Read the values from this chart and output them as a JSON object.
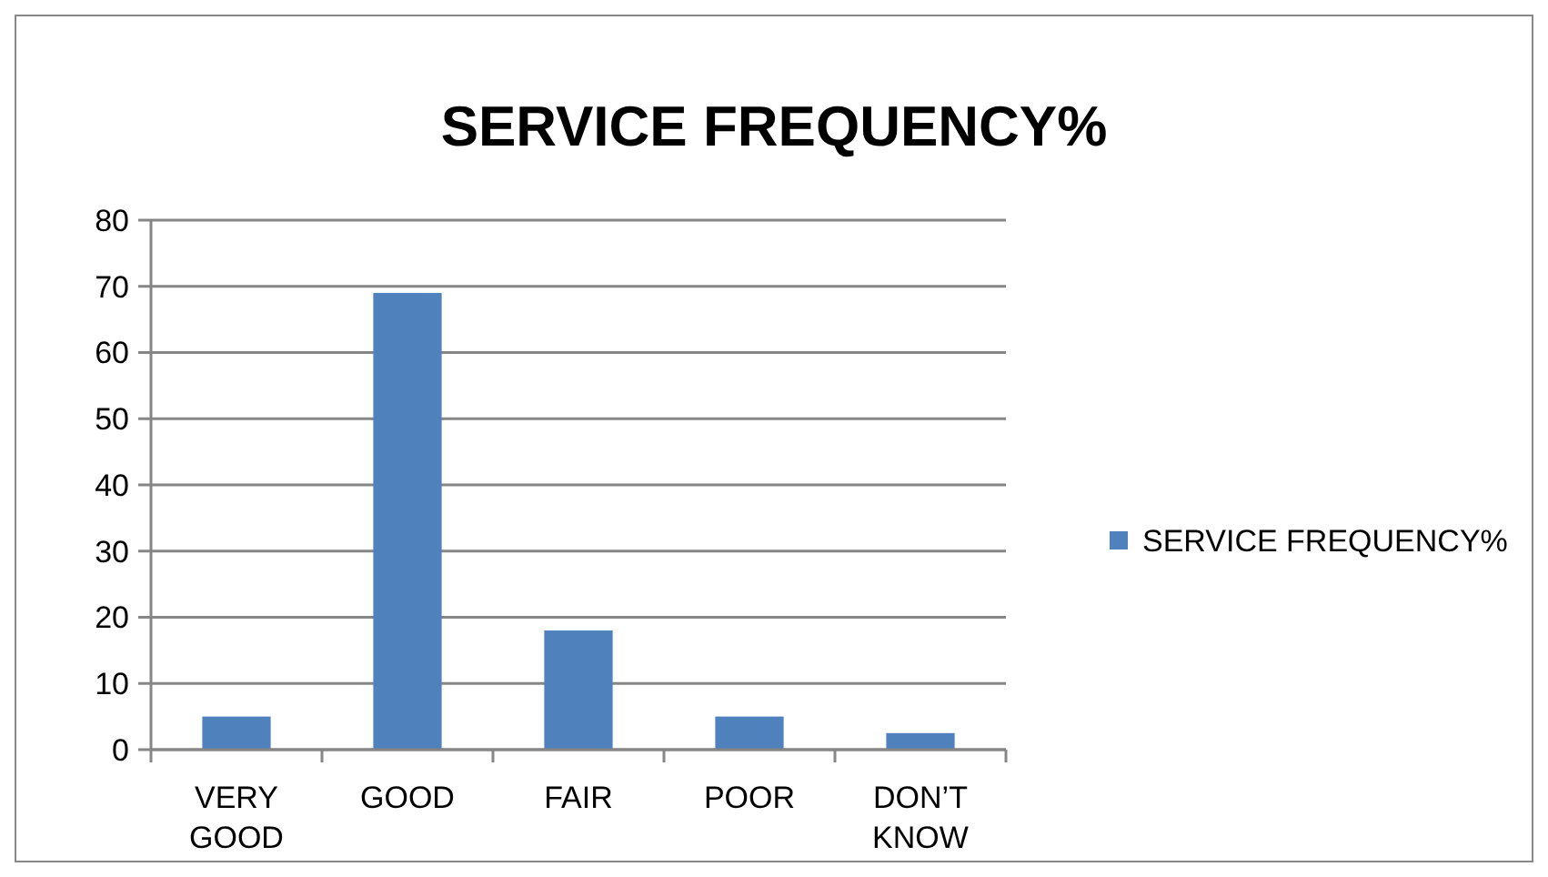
{
  "chart_data": {
    "type": "bar",
    "title": "SERVICE FREQUENCY%",
    "categories": [
      "VERY GOOD",
      "GOOD",
      "FAIR",
      "POOR",
      "DON’T KNOW"
    ],
    "series": [
      {
        "name": "SERVICE FREQUENCY%",
        "color": "#4f81bd",
        "values": [
          5,
          69,
          18,
          5,
          2.5
        ]
      }
    ],
    "ylim": [
      0,
      80
    ],
    "yticks": [
      0,
      10,
      20,
      30,
      40,
      50,
      60,
      70,
      80
    ],
    "grid": "y",
    "legend": "right"
  }
}
